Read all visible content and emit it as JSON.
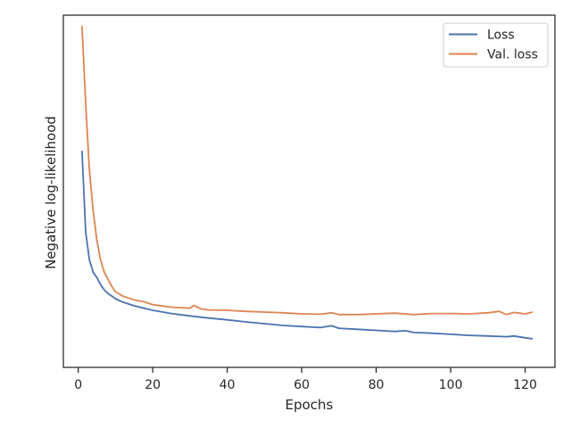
{
  "chart_data": {
    "type": "line",
    "xlabel": "Epochs",
    "ylabel": "Negative log-likelihood",
    "xlim": [
      -4,
      128
    ],
    "ylim": [
      0,
      100
    ],
    "y_ticks_shown": false,
    "x_ticks": [
      0,
      20,
      40,
      60,
      80,
      100,
      120
    ],
    "x_tick_labels": [
      "0",
      "20",
      "40",
      "60",
      "80",
      "100",
      "120"
    ],
    "grid": false,
    "legend_position": "top-right",
    "series": [
      {
        "name": "Loss",
        "color": "#4c72b0",
        "x": [
          1,
          2,
          3,
          4,
          5,
          6,
          7,
          8,
          10,
          12,
          15,
          18,
          20,
          25,
          30,
          35,
          40,
          45,
          50,
          55,
          60,
          65,
          68,
          70,
          75,
          80,
          85,
          88,
          90,
          95,
          100,
          105,
          110,
          115,
          117,
          120,
          122
        ],
        "values": [
          61.5,
          38.5,
          30.5,
          27.0,
          25.5,
          23.5,
          22.0,
          21.0,
          19.5,
          18.5,
          17.5,
          16.7,
          16.2,
          15.3,
          14.6,
          14.0,
          13.5,
          12.9,
          12.4,
          11.9,
          11.6,
          11.3,
          11.8,
          11.1,
          10.8,
          10.5,
          10.2,
          10.4,
          9.9,
          9.7,
          9.4,
          9.1,
          8.9,
          8.7,
          8.9,
          8.4,
          8.1
        ]
      },
      {
        "name": "Val. loss",
        "color": "#dd8452",
        "x": [
          1,
          2,
          3,
          4,
          5,
          6,
          7,
          8,
          9,
          10,
          12,
          15,
          18,
          20,
          25,
          30,
          31,
          33,
          35,
          40,
          45,
          50,
          55,
          60,
          65,
          68,
          70,
          75,
          80,
          85,
          90,
          95,
          100,
          105,
          110,
          113,
          115,
          117,
          120,
          122
        ],
        "values": [
          97.0,
          75.0,
          56.0,
          44.5,
          36.0,
          30.5,
          27.0,
          25.0,
          23.0,
          21.5,
          20.2,
          19.2,
          18.5,
          17.8,
          17.1,
          16.8,
          17.6,
          16.6,
          16.3,
          16.2,
          15.9,
          15.7,
          15.5,
          15.2,
          15.1,
          15.5,
          15.0,
          15.0,
          15.2,
          15.4,
          15.0,
          15.3,
          15.3,
          15.2,
          15.5,
          15.9,
          15.0,
          15.6,
          15.2,
          15.7
        ]
      }
    ]
  }
}
